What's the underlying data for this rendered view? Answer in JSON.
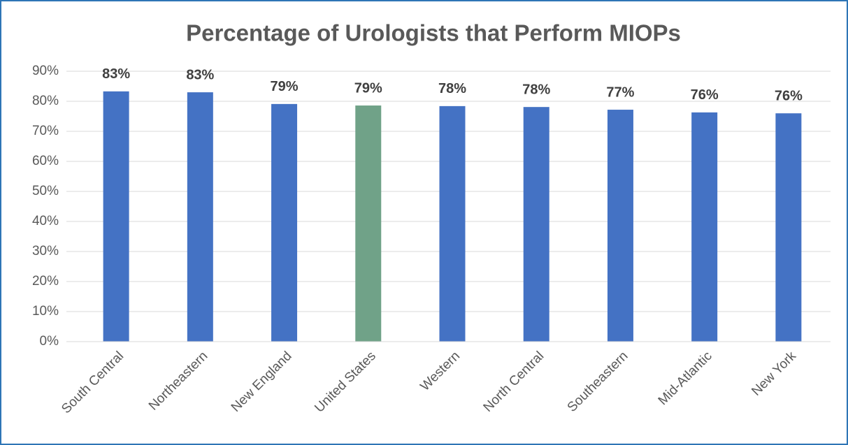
{
  "chart_data": {
    "type": "bar",
    "title": "Percentage of Urologists that Perform MIOPs",
    "categories": [
      "South Central",
      "Northeastern",
      "New England",
      "United States",
      "Western",
      "North Central",
      "Southeastern",
      "Mid-Atlantic",
      "New York"
    ],
    "values": [
      83.3,
      83.0,
      79.1,
      78.6,
      78.4,
      78.1,
      77.2,
      76.3,
      76.0
    ],
    "value_labels": [
      "83%",
      "83%",
      "79%",
      "79%",
      "78%",
      "78%",
      "77%",
      "76%",
      "76%"
    ],
    "colors": [
      "#4472c4",
      "#4472c4",
      "#4472c4",
      "#70a288",
      "#4472c4",
      "#4472c4",
      "#4472c4",
      "#4472c4",
      "#4472c4"
    ],
    "ylim": [
      0,
      90
    ],
    "yticks": [
      {
        "value": 0,
        "label": "0%"
      },
      {
        "value": 10,
        "label": "10%"
      },
      {
        "value": 20,
        "label": "20%"
      },
      {
        "value": 30,
        "label": "30%"
      },
      {
        "value": 40,
        "label": "40%"
      },
      {
        "value": 50,
        "label": "50%"
      },
      {
        "value": 60,
        "label": "60%"
      },
      {
        "value": 70,
        "label": "70%"
      },
      {
        "value": 80,
        "label": "80%"
      },
      {
        "value": 90,
        "label": "90%"
      }
    ],
    "grid": true
  }
}
